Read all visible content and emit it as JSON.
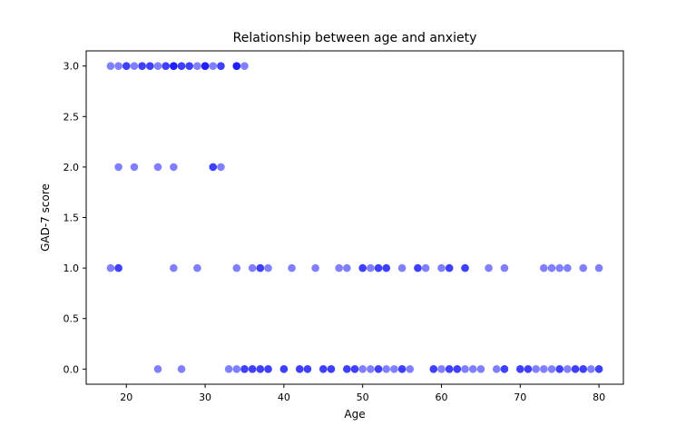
{
  "chart_data": {
    "type": "scatter",
    "title": "Relationship between age and anxiety",
    "xlabel": "Age",
    "ylabel": "GAD-7 score",
    "xlim": [
      14.9,
      83.1
    ],
    "ylim": [
      -0.15,
      3.15
    ],
    "xticks": [
      20,
      30,
      40,
      50,
      60,
      70,
      80
    ],
    "xtick_labels": [
      "20",
      "30",
      "40",
      "50",
      "60",
      "70",
      "80"
    ],
    "yticks": [
      0.0,
      0.5,
      1.0,
      1.5,
      2.0,
      2.5,
      3.0
    ],
    "ytick_labels": [
      "0.0",
      "0.5",
      "1.0",
      "1.5",
      "2.0",
      "2.5",
      "3.0"
    ],
    "grid": false,
    "marker_color": "#0000ff",
    "marker_alpha": 0.5,
    "points": [
      {
        "x": 18,
        "y": 3
      },
      {
        "x": 19,
        "y": 3
      },
      {
        "x": 20,
        "y": 3
      },
      {
        "x": 20,
        "y": 3
      },
      {
        "x": 21,
        "y": 3
      },
      {
        "x": 22,
        "y": 3
      },
      {
        "x": 22,
        "y": 3
      },
      {
        "x": 23,
        "y": 3
      },
      {
        "x": 23,
        "y": 3
      },
      {
        "x": 24,
        "y": 3
      },
      {
        "x": 25,
        "y": 3
      },
      {
        "x": 25,
        "y": 3
      },
      {
        "x": 26,
        "y": 3
      },
      {
        "x": 26,
        "y": 3
      },
      {
        "x": 26,
        "y": 3
      },
      {
        "x": 27,
        "y": 3
      },
      {
        "x": 27,
        "y": 3
      },
      {
        "x": 28,
        "y": 3
      },
      {
        "x": 28,
        "y": 3
      },
      {
        "x": 29,
        "y": 3
      },
      {
        "x": 30,
        "y": 3
      },
      {
        "x": 30,
        "y": 3
      },
      {
        "x": 30,
        "y": 3
      },
      {
        "x": 31,
        "y": 3
      },
      {
        "x": 32,
        "y": 3
      },
      {
        "x": 32,
        "y": 3
      },
      {
        "x": 34,
        "y": 3
      },
      {
        "x": 34,
        "y": 3
      },
      {
        "x": 34,
        "y": 3
      },
      {
        "x": 35,
        "y": 3
      },
      {
        "x": 19,
        "y": 2
      },
      {
        "x": 21,
        "y": 2
      },
      {
        "x": 24,
        "y": 2
      },
      {
        "x": 26,
        "y": 2
      },
      {
        "x": 31,
        "y": 2
      },
      {
        "x": 31,
        "y": 2
      },
      {
        "x": 32,
        "y": 2
      },
      {
        "x": 18,
        "y": 1
      },
      {
        "x": 19,
        "y": 1
      },
      {
        "x": 19,
        "y": 1
      },
      {
        "x": 26,
        "y": 1
      },
      {
        "x": 29,
        "y": 1
      },
      {
        "x": 34,
        "y": 1
      },
      {
        "x": 36,
        "y": 1
      },
      {
        "x": 37,
        "y": 1
      },
      {
        "x": 37,
        "y": 1
      },
      {
        "x": 38,
        "y": 1
      },
      {
        "x": 41,
        "y": 1
      },
      {
        "x": 44,
        "y": 1
      },
      {
        "x": 47,
        "y": 1
      },
      {
        "x": 48,
        "y": 1
      },
      {
        "x": 50,
        "y": 1
      },
      {
        "x": 50,
        "y": 1
      },
      {
        "x": 51,
        "y": 1
      },
      {
        "x": 52,
        "y": 1
      },
      {
        "x": 52,
        "y": 1
      },
      {
        "x": 53,
        "y": 1
      },
      {
        "x": 53,
        "y": 1
      },
      {
        "x": 55,
        "y": 1
      },
      {
        "x": 57,
        "y": 1
      },
      {
        "x": 57,
        "y": 1
      },
      {
        "x": 58,
        "y": 1
      },
      {
        "x": 60,
        "y": 1
      },
      {
        "x": 61,
        "y": 1
      },
      {
        "x": 61,
        "y": 1
      },
      {
        "x": 63,
        "y": 1
      },
      {
        "x": 63,
        "y": 1
      },
      {
        "x": 66,
        "y": 1
      },
      {
        "x": 68,
        "y": 1
      },
      {
        "x": 73,
        "y": 1
      },
      {
        "x": 74,
        "y": 1
      },
      {
        "x": 75,
        "y": 1
      },
      {
        "x": 76,
        "y": 1
      },
      {
        "x": 78,
        "y": 1
      },
      {
        "x": 80,
        "y": 1
      },
      {
        "x": 24,
        "y": 0
      },
      {
        "x": 27,
        "y": 0
      },
      {
        "x": 33,
        "y": 0
      },
      {
        "x": 34,
        "y": 0
      },
      {
        "x": 35,
        "y": 0
      },
      {
        "x": 35,
        "y": 0
      },
      {
        "x": 36,
        "y": 0
      },
      {
        "x": 36,
        "y": 0
      },
      {
        "x": 37,
        "y": 0
      },
      {
        "x": 37,
        "y": 0
      },
      {
        "x": 38,
        "y": 0
      },
      {
        "x": 38,
        "y": 0
      },
      {
        "x": 40,
        "y": 0
      },
      {
        "x": 40,
        "y": 0
      },
      {
        "x": 42,
        "y": 0
      },
      {
        "x": 42,
        "y": 0
      },
      {
        "x": 43,
        "y": 0
      },
      {
        "x": 43,
        "y": 0
      },
      {
        "x": 45,
        "y": 0
      },
      {
        "x": 45,
        "y": 0
      },
      {
        "x": 46,
        "y": 0
      },
      {
        "x": 46,
        "y": 0
      },
      {
        "x": 48,
        "y": 0
      },
      {
        "x": 48,
        "y": 0
      },
      {
        "x": 49,
        "y": 0
      },
      {
        "x": 49,
        "y": 0
      },
      {
        "x": 50,
        "y": 0
      },
      {
        "x": 51,
        "y": 0
      },
      {
        "x": 52,
        "y": 0
      },
      {
        "x": 52,
        "y": 0
      },
      {
        "x": 53,
        "y": 0
      },
      {
        "x": 54,
        "y": 0
      },
      {
        "x": 55,
        "y": 0
      },
      {
        "x": 55,
        "y": 0
      },
      {
        "x": 56,
        "y": 0
      },
      {
        "x": 59,
        "y": 0
      },
      {
        "x": 59,
        "y": 0
      },
      {
        "x": 60,
        "y": 0
      },
      {
        "x": 61,
        "y": 0
      },
      {
        "x": 61,
        "y": 0
      },
      {
        "x": 62,
        "y": 0
      },
      {
        "x": 62,
        "y": 0
      },
      {
        "x": 63,
        "y": 0
      },
      {
        "x": 64,
        "y": 0
      },
      {
        "x": 65,
        "y": 0
      },
      {
        "x": 67,
        "y": 0
      },
      {
        "x": 68,
        "y": 0
      },
      {
        "x": 68,
        "y": 0
      },
      {
        "x": 70,
        "y": 0
      },
      {
        "x": 70,
        "y": 0
      },
      {
        "x": 71,
        "y": 0
      },
      {
        "x": 71,
        "y": 0
      },
      {
        "x": 72,
        "y": 0
      },
      {
        "x": 73,
        "y": 0
      },
      {
        "x": 74,
        "y": 0
      },
      {
        "x": 75,
        "y": 0
      },
      {
        "x": 75,
        "y": 0
      },
      {
        "x": 76,
        "y": 0
      },
      {
        "x": 77,
        "y": 0
      },
      {
        "x": 77,
        "y": 0
      },
      {
        "x": 78,
        "y": 0
      },
      {
        "x": 78,
        "y": 0
      },
      {
        "x": 79,
        "y": 0
      },
      {
        "x": 80,
        "y": 0
      },
      {
        "x": 80,
        "y": 0
      }
    ]
  }
}
